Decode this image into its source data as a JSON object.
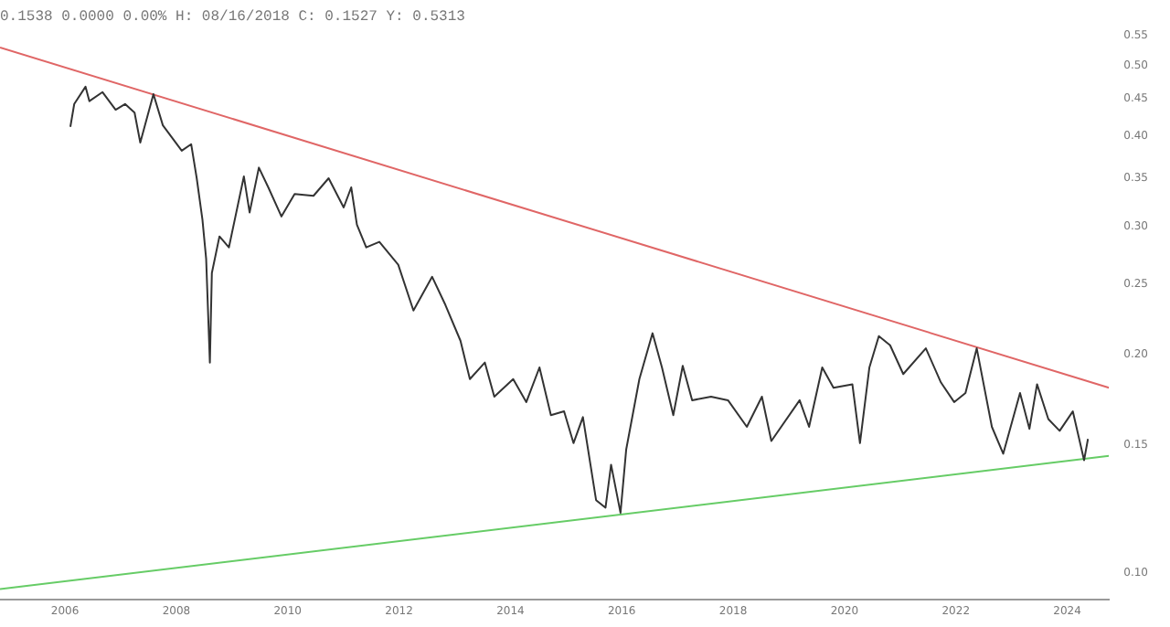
{
  "chart_data": {
    "type": "line",
    "title": "0.1538 0.0000 0.00% H: 08/16/2018 C: 0.1527 Y: 0.5313",
    "log": "y",
    "grid": false,
    "legend": false,
    "marker": "none",
    "xlim": [
      "2004-11",
      "2024-10"
    ],
    "xticks": [
      "2006",
      "2008",
      "2010",
      "2012",
      "2014",
      "2016",
      "2018",
      "2020",
      "2022",
      "2024"
    ],
    "ylim": [
      0.092,
      0.55
    ],
    "yticks": [
      {
        "value": 0.1,
        "label": "0.10"
      },
      {
        "value": 0.15,
        "label": "0.15"
      },
      {
        "value": 0.2,
        "label": "0.20"
      },
      {
        "value": 0.25,
        "label": "0.25"
      },
      {
        "value": 0.3,
        "label": "0.30"
      },
      {
        "value": 0.35,
        "label": "0.35"
      },
      {
        "value": 0.4,
        "label": "0.40"
      },
      {
        "value": 0.45,
        "label": "0.45"
      },
      {
        "value": 0.5,
        "label": "0.50"
      },
      {
        "value": 0.55,
        "label": "0.55"
      }
    ],
    "series": [
      {
        "color": "#333333",
        "x": [
          "2006-02-06",
          "2006-03-01",
          "2006-05-14",
          "2006-06-09",
          "2006-09-04",
          "2006-11-29",
          "2007-01-30",
          "2007-04-01",
          "2007-05-08",
          "2007-08-03",
          "2007-10-04",
          "2008-02-06",
          "2008-04-07",
          "2008-05-13",
          "2008-06-20",
          "2008-07-14",
          "2008-08-08",
          "2008-08-21",
          "2008-10-10",
          "2008-12-11",
          "2009-03-18",
          "2009-04-25",
          "2009-06-25",
          "2009-08-26",
          "2009-11-21",
          "2010-02-16",
          "2010-06-18",
          "2010-09-26",
          "2011-01-03",
          "2011-02-22",
          "2011-03-29",
          "2011-05-29",
          "2011-08-24",
          "2011-12-26",
          "2012-04-04",
          "2012-08-05",
          "2012-11-01",
          "2013-02-08",
          "2013-04-09",
          "2013-07-16",
          "2013-09-17",
          "2014-01-19",
          "2014-04-14",
          "2014-07-09",
          "2014-09-23",
          "2014-12-18",
          "2015-02-19",
          "2015-04-20",
          "2015-07-15",
          "2015-09-16",
          "2015-10-22",
          "2015-12-23",
          "2016-01-30",
          "2016-04-25",
          "2016-07-20",
          "2016-09-21",
          "2016-12-04",
          "2017-02-05",
          "2017-04-06",
          "2017-08-08",
          "2017-11-28",
          "2018-03-30",
          "2018-07-07",
          "2018-09-08",
          "2019-03-11",
          "2019-05-12",
          "2019-08-07",
          "2019-10-20",
          "2020-02-22",
          "2020-04-11",
          "2020-06-12",
          "2020-08-13",
          "2020-10-26",
          "2021-01-21",
          "2021-06-17",
          "2021-09-25",
          "2021-12-20",
          "2022-03-03",
          "2022-05-16",
          "2022-08-24",
          "2022-11-07",
          "2023-02-26",
          "2023-04-27",
          "2023-06-16",
          "2023-08-29",
          "2023-11-12",
          "2024-02-07",
          "2024-04-20",
          "2024-05-15"
        ],
        "values": [
          0.412,
          0.443,
          0.468,
          0.447,
          0.46,
          0.435,
          0.443,
          0.431,
          0.392,
          0.457,
          0.414,
          0.382,
          0.39,
          0.35,
          0.307,
          0.271,
          0.195,
          0.259,
          0.291,
          0.281,
          0.352,
          0.314,
          0.362,
          0.34,
          0.31,
          0.333,
          0.331,
          0.35,
          0.319,
          0.34,
          0.302,
          0.281,
          0.286,
          0.266,
          0.23,
          0.256,
          0.234,
          0.209,
          0.185,
          0.195,
          0.175,
          0.185,
          0.172,
          0.192,
          0.165,
          0.167,
          0.151,
          0.164,
          0.126,
          0.123,
          0.141,
          0.121,
          0.148,
          0.185,
          0.214,
          0.192,
          0.165,
          0.193,
          0.173,
          0.175,
          0.173,
          0.159,
          0.175,
          0.152,
          0.173,
          0.159,
          0.192,
          0.18,
          0.182,
          0.151,
          0.192,
          0.212,
          0.206,
          0.188,
          0.204,
          0.183,
          0.172,
          0.177,
          0.204,
          0.159,
          0.146,
          0.177,
          0.158,
          0.182,
          0.163,
          0.157,
          0.167,
          0.143,
          0.153
        ]
      },
      {
        "color": "#e06666",
        "x": [
          "2004-11",
          "2024-10"
        ],
        "values": [
          0.53,
          0.18
        ]
      },
      {
        "color": "#66cc66",
        "x": [
          "2004-11",
          "2024-10"
        ],
        "values": [
          0.095,
          0.145
        ]
      }
    ]
  }
}
